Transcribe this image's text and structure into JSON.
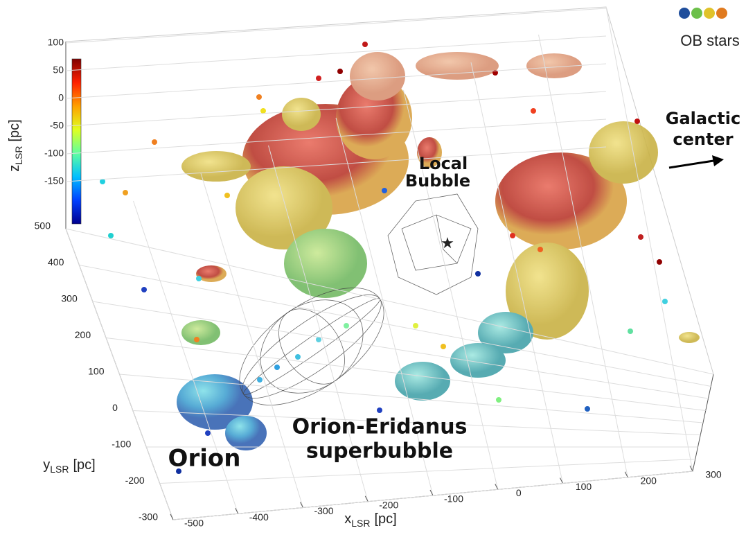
{
  "chart_data": {
    "type": "scatter3d",
    "xlabel": {
      "main": "x",
      "sub": "LSR",
      "unit": "[pc]"
    },
    "ylabel": {
      "main": "y",
      "sub": "LSR",
      "unit": "[pc]"
    },
    "zlabel": {
      "main": "z",
      "sub": "LSR",
      "unit": "[pc]"
    },
    "xlim": [
      -500,
      300
    ],
    "xticks": [
      -500,
      -400,
      -300,
      -200,
      -100,
      0,
      100,
      200,
      300
    ],
    "ylim": [
      -300,
      500
    ],
    "yticks": [
      -300,
      -200,
      -100,
      0,
      100,
      200,
      300,
      400,
      500
    ],
    "zlim": [
      -150,
      100
    ],
    "zticks": [
      -150,
      -100,
      -50,
      0,
      50,
      100
    ],
    "colormap": [
      "#00008f",
      "#0040ff",
      "#00c0ff",
      "#60ff9f",
      "#e0ff20",
      "#ffa000",
      "#ff2000",
      "#800000"
    ],
    "grid": true,
    "annotations": [
      "Local",
      "Bubble",
      "Orion-Eridanus",
      "superbubble",
      "Orion",
      "Galactic",
      "center"
    ],
    "legend": {
      "label": "OB stars",
      "colors": [
        "#1f4e9c",
        "#6cc04a",
        "#e0c22a",
        "#e07a1f"
      ]
    }
  }
}
